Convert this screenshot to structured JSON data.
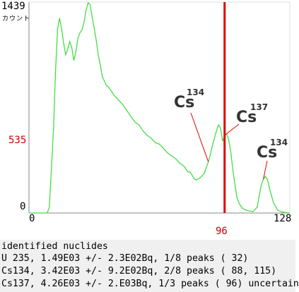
{
  "spectrum": {
    "y_max_label": "1439",
    "y_unit_label": "カウント",
    "y_cursor_label": "535",
    "y_zero_label": "0",
    "x_min_label": "0",
    "x_max_label": "128",
    "x_cursor_label": "96",
    "cursor_channel": 96,
    "cursor_color": "#e00000",
    "line_color": "#44dd44",
    "frame_color": "#888888"
  },
  "chart_data": {
    "type": "line",
    "title": "",
    "xlabel": "",
    "ylabel": "カウント",
    "xlim": [
      0,
      128
    ],
    "ylim": [
      0,
      1439
    ],
    "grid": false,
    "cursor": {
      "x": 96,
      "y": 535
    },
    "series": [
      {
        "x": [
          0,
          8,
          9,
          10,
          11,
          12,
          13,
          14,
          15,
          16,
          17,
          18,
          19,
          20,
          21,
          22,
          23,
          24,
          25,
          26,
          27,
          28,
          29,
          30,
          31,
          32,
          33,
          34,
          35,
          36,
          37,
          38,
          39,
          40,
          41,
          42,
          44,
          46,
          48,
          50,
          52,
          54,
          56,
          58,
          60,
          62,
          64,
          66,
          68,
          70,
          72,
          74,
          76,
          77,
          78,
          79,
          80,
          81,
          82,
          84,
          86,
          87,
          88,
          89,
          90,
          91,
          92,
          93,
          94,
          95,
          96,
          97,
          98,
          99,
          100,
          101,
          102,
          103,
          104,
          105,
          106,
          108,
          110,
          112,
          113,
          114,
          115,
          116,
          117,
          118,
          120,
          122,
          124,
          126,
          128
        ],
        "y": [
          0,
          0,
          2,
          40,
          300,
          560,
          960,
          1250,
          1330,
          1260,
          1160,
          1080,
          1120,
          1170,
          1130,
          1040,
          1100,
          1190,
          1230,
          1250,
          1300,
          1380,
          1435,
          1420,
          1340,
          1260,
          1180,
          1080,
          1010,
          930,
          900,
          870,
          860,
          840,
          820,
          800,
          770,
          740,
          700,
          660,
          620,
          600,
          560,
          530,
          510,
          480,
          470,
          440,
          410,
          390,
          370,
          340,
          320,
          300,
          280,
          280,
          260,
          235,
          225,
          240,
          270,
          310,
          350,
          400,
          460,
          510,
          560,
          600,
          580,
          490,
          530,
          540,
          500,
          420,
          300,
          200,
          110,
          70,
          45,
          30,
          22,
          14,
          10,
          40,
          120,
          190,
          230,
          250,
          230,
          170,
          70,
          20,
          8,
          3,
          0
        ]
      }
    ],
    "annotations": [
      {
        "symbol": "Cs",
        "mass": "134",
        "channel": 88
      },
      {
        "symbol": "Cs",
        "mass": "137",
        "channel": 96
      },
      {
        "symbol": "Cs",
        "mass": "134",
        "channel": 115
      }
    ]
  },
  "results": {
    "header": "identified nuclides",
    "lines": [
      "U 235, 1.49E03 +/- 2.3E02Bq, 1/8 peaks ( 32)",
      "Cs134, 3.42E03 +/- 9.2E02Bq, 2/8 peaks ( 88, 115)",
      "Cs137, 4.26E03 +/- 2.E03Bq, 1/3 peaks ( 96) uncertain"
    ]
  }
}
